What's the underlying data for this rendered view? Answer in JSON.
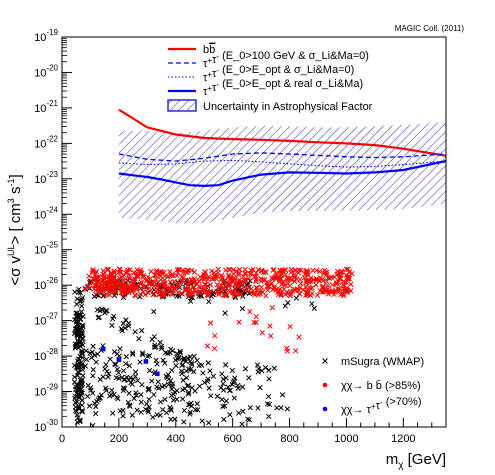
{
  "credit": "MAGIC Coll. (2011)",
  "chart_data": {
    "type": "line",
    "xlabel": "m_χ [GeV]",
    "ylabel": "<σ v^UL> [ cm^3 s^-1 ]",
    "xlim": [
      0,
      1350
    ],
    "ylim_log10": [
      -30,
      -19
    ],
    "y_scale": "log",
    "grid": false,
    "legend_placement": "top-center",
    "x_ticks": [
      "0",
      "200",
      "400",
      "600",
      "800",
      "1000",
      "1200"
    ],
    "y_ticks": [
      {
        "base": "10",
        "exp": "-19",
        "log": -19
      },
      {
        "base": "10",
        "exp": "-20",
        "log": -20
      },
      {
        "base": "10",
        "exp": "-21",
        "log": -21
      },
      {
        "base": "10",
        "exp": "-22",
        "log": -22
      },
      {
        "base": "10",
        "exp": "-23",
        "log": -23
      },
      {
        "base": "10",
        "exp": "-24",
        "log": -24
      },
      {
        "base": "10",
        "exp": "-25",
        "log": -25
      },
      {
        "base": "10",
        "exp": "-26",
        "log": -26
      },
      {
        "base": "10",
        "exp": "-27",
        "log": -27
      },
      {
        "base": "10",
        "exp": "-28",
        "log": -28
      },
      {
        "base": "10",
        "exp": "-29",
        "log": -29
      },
      {
        "base": "10",
        "exp": "-30",
        "log": -30
      }
    ],
    "series": [
      {
        "name": "b b̄",
        "color": "#ff0000",
        "style": "solid",
        "width": 2.2,
        "x": [
          200,
          250,
          300,
          400,
          500,
          600,
          700,
          800,
          900,
          1000,
          1100,
          1200,
          1350
        ],
        "log_y": [
          -21.05,
          -21.3,
          -21.55,
          -21.75,
          -21.85,
          -21.88,
          -21.9,
          -21.93,
          -21.97,
          -22.0,
          -22.05,
          -22.15,
          -22.35
        ]
      },
      {
        "name": "τ+τ- (E_0>100 GeV & σ_Li&Ma=0)",
        "color": "#0000ff",
        "style": "dashed",
        "width": 1.3,
        "x": [
          200,
          300,
          400,
          500,
          600,
          700,
          800,
          900,
          1000,
          1100,
          1200,
          1350
        ],
        "log_y": [
          -22.3,
          -22.45,
          -22.5,
          -22.42,
          -22.3,
          -22.27,
          -22.3,
          -22.34,
          -22.38,
          -22.4,
          -22.38,
          -22.3
        ]
      },
      {
        "name": "τ+τ- (E_0>E_opt & σ_Li&Ma=0)",
        "color": "#0000ff",
        "style": "dotted",
        "width": 1.1,
        "x": [
          200,
          300,
          400,
          500,
          600,
          700,
          800,
          900,
          1000,
          1100,
          1200,
          1350
        ],
        "log_y": [
          -22.55,
          -22.6,
          -22.58,
          -22.5,
          -22.48,
          -22.52,
          -22.58,
          -22.63,
          -22.67,
          -22.65,
          -22.6,
          -22.5
        ]
      },
      {
        "name": "τ+τ- (E_0>E_opt & real σ_Li&Ma)",
        "color": "#0000ff",
        "style": "solid",
        "width": 2.2,
        "x": [
          200,
          250,
          300,
          350,
          400,
          450,
          500,
          550,
          600,
          700,
          800,
          900,
          1000,
          1100,
          1200,
          1350
        ],
        "log_y": [
          -22.85,
          -22.9,
          -22.95,
          -23.02,
          -23.1,
          -23.18,
          -23.2,
          -23.18,
          -23.05,
          -22.88,
          -22.82,
          -22.83,
          -22.85,
          -22.82,
          -22.75,
          -22.5
        ]
      }
    ],
    "uncertainty_band": {
      "name": "Uncertainty in Astrophysical Factor",
      "color": "#1e1ec8",
      "x": [
        200,
        300,
        400,
        500,
        600,
        700,
        800,
        900,
        1000,
        1100,
        1200,
        1350
      ],
      "log_y_upper": [
        -21.65,
        -21.65,
        -21.72,
        -21.65,
        -21.55,
        -21.5,
        -21.52,
        -21.55,
        -21.55,
        -21.52,
        -21.48,
        -21.4
      ],
      "log_y_lower": [
        -24.1,
        -24.15,
        -24.25,
        -24.25,
        -24.1,
        -23.95,
        -23.9,
        -23.9,
        -23.9,
        -23.88,
        -23.85,
        -23.7
      ]
    },
    "scatter_legend": [
      {
        "label": "mSugra (WMAP)",
        "marker": "×",
        "color": "#000000"
      },
      {
        "label": "χχ→ b b̄ (>85%)",
        "marker": "●",
        "color": "#ff0000"
      },
      {
        "label": "χχ→ τ+τ- (>70%)",
        "marker": "●",
        "color": "#0000ff"
      }
    ],
    "blue_points": [
      {
        "x": 145,
        "log_y": -27.8
      },
      {
        "x": 200,
        "log_y": -28.1
      },
      {
        "x": 295,
        "log_y": -28.15
      },
      {
        "x": 335,
        "log_y": -28.5
      }
    ]
  }
}
